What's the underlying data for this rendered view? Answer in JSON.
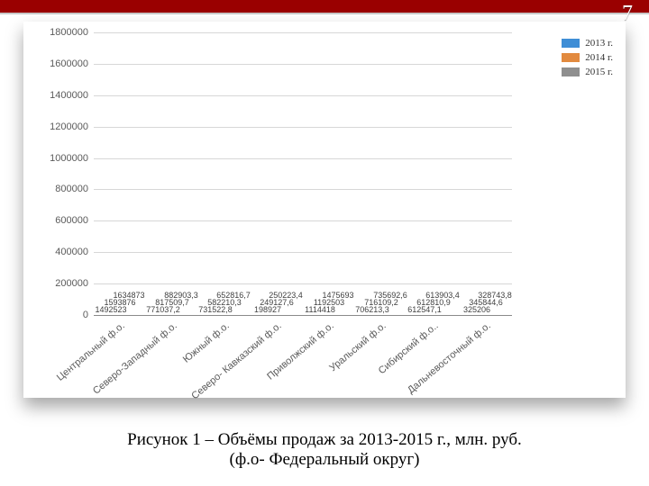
{
  "page_number": "7",
  "header": {
    "red_color": "#9a0000"
  },
  "chart": {
    "type": "bar",
    "ymax": 1800000,
    "ytick_step": 200000,
    "yticks": [
      0,
      200000,
      400000,
      600000,
      800000,
      1000000,
      1200000,
      1400000,
      1600000,
      1800000
    ],
    "series": [
      {
        "key": "y2013",
        "label": "2013 г.",
        "color": "#3f8ed6"
      },
      {
        "key": "y2014",
        "label": "2014 г.",
        "color": "#e28a3f"
      },
      {
        "key": "y2015",
        "label": "2015 г.",
        "color": "#8f8f8f"
      }
    ],
    "categories": [
      "Центральный ф.о.",
      "Северо-Западный ф.о.",
      "Южный ф.о.",
      "Северо- Кавказский ф.о.",
      "Приволжский ф.о.",
      "Уральский ф.о.",
      "Сибирский ф.о..",
      "Дальневосточный ф.о."
    ],
    "values": {
      "y2013": [
        1492523,
        771037.2,
        731522.8,
        198927,
        1114418,
        706213.3,
        612547.1,
        325206
      ],
      "y2014": [
        1593876,
        817509.7,
        582210.3,
        249127.6,
        1192503,
        716109.2,
        612810.9,
        345844.6
      ],
      "y2015": [
        1634873,
        882903.3,
        652816.7,
        250223.4,
        1475693,
        735692.6,
        613903.4,
        328743.8
      ]
    },
    "label_overrides": {
      "y2013": {
        "6": "612547,1"
      },
      "y2014": {},
      "y2015": {}
    },
    "label_fontsize": 9,
    "tick_fontsize": 11,
    "grid_color": "#d7d7d7",
    "axis_color": "#8a8a8a",
    "background": "#ffffff"
  },
  "caption": {
    "line1": "Рисунок 1 – Объёмы продаж за 2013-2015 г., млн. руб.",
    "line2": "(ф.о- Федеральный округ)"
  }
}
